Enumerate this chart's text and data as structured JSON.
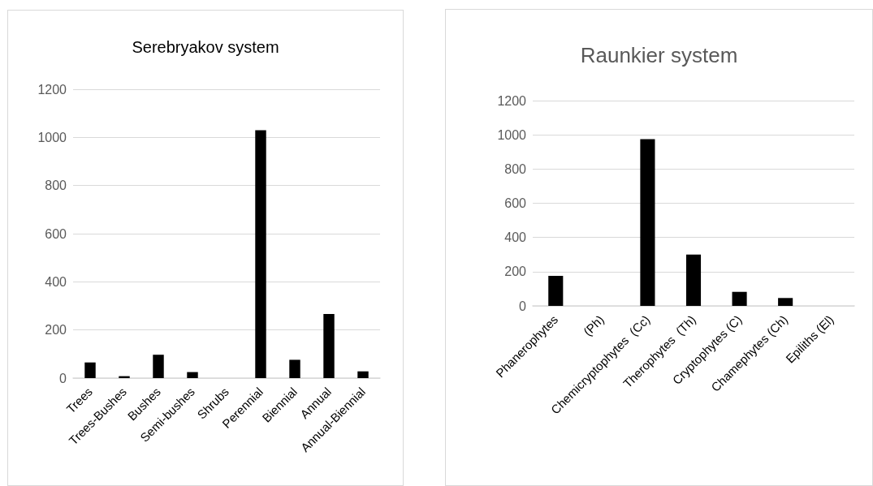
{
  "chart_data": [
    {
      "type": "bar",
      "title": "Serebryakov system",
      "categories": [
        "Trees",
        "Trees-Bushes",
        "Bushes",
        "Semi-bushes",
        "Shrubs",
        "Perennial",
        "Biennial",
        "Annual",
        "Annual-Biennial"
      ],
      "values": [
        65,
        8,
        97,
        25,
        0,
        1030,
        76,
        266,
        28
      ],
      "color": "#000000",
      "ylim": [
        0,
        1200
      ],
      "yticks": [
        0,
        200,
        400,
        600,
        800,
        1000,
        1200
      ],
      "grid": "y"
    },
    {
      "type": "bar",
      "title": "Raunkier system",
      "categories": [
        "Phanerophytes",
        "(Ph)",
        "Chemicryptophytes  (Cc)",
        "Therophytes  (Th)",
        "Cryptophytes (C)",
        "Chamephytes (Ch)",
        "Epiliths (El)"
      ],
      "values": [
        175,
        0,
        975,
        300,
        82,
        46,
        0
      ],
      "color": "#000000",
      "ylim": [
        0,
        1200
      ],
      "yticks": [
        0,
        200,
        400,
        600,
        800,
        1000,
        1200
      ],
      "grid": "y"
    }
  ]
}
